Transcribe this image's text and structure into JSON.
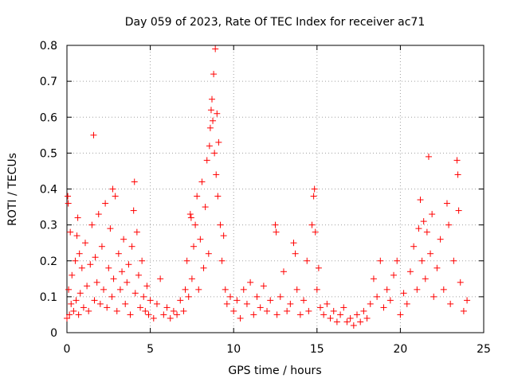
{
  "chart_data": {
    "type": "scatter",
    "title": "Day 059 of 2023, Rate Of TEC Index for receiver ac71",
    "xlabel": "GPS time / hours",
    "ylabel": "ROTI / TECUs",
    "xlim": [
      0,
      25
    ],
    "ylim": [
      0,
      0.8
    ],
    "xticks": [
      0,
      5,
      10,
      15,
      20,
      25
    ],
    "yticks": [
      0,
      0.1,
      0.2,
      0.3,
      0.4,
      0.5,
      0.6,
      0.7,
      0.8
    ],
    "xtick_labels": [
      "0",
      "5",
      "10",
      "15",
      "20",
      "25"
    ],
    "ytick_labels": [
      "0",
      "0.1",
      "0.2",
      "0.3",
      "0.4",
      "0.5",
      "0.6",
      "0.7",
      "0.8"
    ],
    "grid": true,
    "marker": "plus",
    "color": "#ff0000",
    "series": [
      {
        "points": [
          [
            0.0,
            0.04
          ],
          [
            0.05,
            0.38
          ],
          [
            0.08,
            0.36
          ],
          [
            0.1,
            0.12
          ],
          [
            0.15,
            0.05
          ],
          [
            0.2,
            0.28
          ],
          [
            0.25,
            0.08
          ],
          [
            0.3,
            0.16
          ],
          [
            0.4,
            0.06
          ],
          [
            0.5,
            0.2
          ],
          [
            0.55,
            0.09
          ],
          [
            0.6,
            0.27
          ],
          [
            0.65,
            0.32
          ],
          [
            0.7,
            0.05
          ],
          [
            0.75,
            0.22
          ],
          [
            0.8,
            0.11
          ],
          [
            0.9,
            0.18
          ],
          [
            1.0,
            0.07
          ],
          [
            1.1,
            0.25
          ],
          [
            1.2,
            0.13
          ],
          [
            1.3,
            0.06
          ],
          [
            1.4,
            0.19
          ],
          [
            1.5,
            0.3
          ],
          [
            1.6,
            0.55
          ],
          [
            1.65,
            0.09
          ],
          [
            1.7,
            0.21
          ],
          [
            1.8,
            0.14
          ],
          [
            1.9,
            0.33
          ],
          [
            2.0,
            0.08
          ],
          [
            2.1,
            0.24
          ],
          [
            2.2,
            0.12
          ],
          [
            2.3,
            0.36
          ],
          [
            2.4,
            0.07
          ],
          [
            2.5,
            0.18
          ],
          [
            2.6,
            0.29
          ],
          [
            2.7,
            0.1
          ],
          [
            2.75,
            0.4
          ],
          [
            2.8,
            0.15
          ],
          [
            2.9,
            0.38
          ],
          [
            3.0,
            0.06
          ],
          [
            3.1,
            0.22
          ],
          [
            3.2,
            0.12
          ],
          [
            3.3,
            0.17
          ],
          [
            3.4,
            0.26
          ],
          [
            3.5,
            0.08
          ],
          [
            3.6,
            0.14
          ],
          [
            3.7,
            0.19
          ],
          [
            3.8,
            0.05
          ],
          [
            3.9,
            0.24
          ],
          [
            4.0,
            0.34
          ],
          [
            4.05,
            0.42
          ],
          [
            4.1,
            0.11
          ],
          [
            4.2,
            0.28
          ],
          [
            4.3,
            0.16
          ],
          [
            4.4,
            0.07
          ],
          [
            4.5,
            0.2
          ],
          [
            4.6,
            0.1
          ],
          [
            4.7,
            0.06
          ],
          [
            4.8,
            0.13
          ],
          [
            4.9,
            0.05
          ],
          [
            5.0,
            0.09
          ],
          [
            5.2,
            0.04
          ],
          [
            5.4,
            0.08
          ],
          [
            5.6,
            0.15
          ],
          [
            5.8,
            0.05
          ],
          [
            6.0,
            0.07
          ],
          [
            6.2,
            0.04
          ],
          [
            6.4,
            0.06
          ],
          [
            6.6,
            0.05
          ],
          [
            6.8,
            0.09
          ],
          [
            7.0,
            0.06
          ],
          [
            7.1,
            0.12
          ],
          [
            7.2,
            0.2
          ],
          [
            7.3,
            0.1
          ],
          [
            7.4,
            0.33
          ],
          [
            7.45,
            0.32
          ],
          [
            7.5,
            0.15
          ],
          [
            7.6,
            0.24
          ],
          [
            7.7,
            0.3
          ],
          [
            7.8,
            0.38
          ],
          [
            7.9,
            0.12
          ],
          [
            8.0,
            0.26
          ],
          [
            8.1,
            0.42
          ],
          [
            8.2,
            0.18
          ],
          [
            8.3,
            0.35
          ],
          [
            8.4,
            0.48
          ],
          [
            8.5,
            0.22
          ],
          [
            8.55,
            0.52
          ],
          [
            8.6,
            0.57
          ],
          [
            8.65,
            0.62
          ],
          [
            8.7,
            0.65
          ],
          [
            8.75,
            0.59
          ],
          [
            8.8,
            0.72
          ],
          [
            8.85,
            0.5
          ],
          [
            8.9,
            0.79
          ],
          [
            8.95,
            0.44
          ],
          [
            9.0,
            0.61
          ],
          [
            9.05,
            0.38
          ],
          [
            9.1,
            0.53
          ],
          [
            9.2,
            0.3
          ],
          [
            9.3,
            0.2
          ],
          [
            9.4,
            0.27
          ],
          [
            9.5,
            0.12
          ],
          [
            9.6,
            0.08
          ],
          [
            9.8,
            0.1
          ],
          [
            10.0,
            0.06
          ],
          [
            10.2,
            0.09
          ],
          [
            10.4,
            0.04
          ],
          [
            10.6,
            0.12
          ],
          [
            10.8,
            0.08
          ],
          [
            11.0,
            0.14
          ],
          [
            11.2,
            0.05
          ],
          [
            11.4,
            0.1
          ],
          [
            11.6,
            0.07
          ],
          [
            11.8,
            0.13
          ],
          [
            12.0,
            0.06
          ],
          [
            12.2,
            0.09
          ],
          [
            12.5,
            0.3
          ],
          [
            12.55,
            0.28
          ],
          [
            12.6,
            0.05
          ],
          [
            12.8,
            0.1
          ],
          [
            13.0,
            0.17
          ],
          [
            13.2,
            0.06
          ],
          [
            13.4,
            0.08
          ],
          [
            13.6,
            0.25
          ],
          [
            13.7,
            0.22
          ],
          [
            13.8,
            0.12
          ],
          [
            14.0,
            0.05
          ],
          [
            14.2,
            0.09
          ],
          [
            14.4,
            0.2
          ],
          [
            14.5,
            0.06
          ],
          [
            14.7,
            0.3
          ],
          [
            14.8,
            0.38
          ],
          [
            14.85,
            0.4
          ],
          [
            14.9,
            0.28
          ],
          [
            15.0,
            0.12
          ],
          [
            15.1,
            0.18
          ],
          [
            15.2,
            0.07
          ],
          [
            15.4,
            0.05
          ],
          [
            15.6,
            0.08
          ],
          [
            15.8,
            0.04
          ],
          [
            16.0,
            0.06
          ],
          [
            16.2,
            0.03
          ],
          [
            16.4,
            0.05
          ],
          [
            16.6,
            0.07
          ],
          [
            16.8,
            0.03
          ],
          [
            17.0,
            0.04
          ],
          [
            17.2,
            0.02
          ],
          [
            17.4,
            0.05
          ],
          [
            17.6,
            0.03
          ],
          [
            17.8,
            0.06
          ],
          [
            18.0,
            0.04
          ],
          [
            18.2,
            0.08
          ],
          [
            18.4,
            0.15
          ],
          [
            18.6,
            0.1
          ],
          [
            18.8,
            0.2
          ],
          [
            19.0,
            0.07
          ],
          [
            19.2,
            0.12
          ],
          [
            19.4,
            0.09
          ],
          [
            19.6,
            0.16
          ],
          [
            19.8,
            0.2
          ],
          [
            20.0,
            0.05
          ],
          [
            20.2,
            0.11
          ],
          [
            20.4,
            0.08
          ],
          [
            20.6,
            0.17
          ],
          [
            20.8,
            0.24
          ],
          [
            21.0,
            0.12
          ],
          [
            21.1,
            0.29
          ],
          [
            21.2,
            0.37
          ],
          [
            21.3,
            0.2
          ],
          [
            21.4,
            0.31
          ],
          [
            21.5,
            0.15
          ],
          [
            21.6,
            0.28
          ],
          [
            21.7,
            0.49
          ],
          [
            21.8,
            0.22
          ],
          [
            21.9,
            0.33
          ],
          [
            22.0,
            0.1
          ],
          [
            22.2,
            0.18
          ],
          [
            22.4,
            0.26
          ],
          [
            22.6,
            0.12
          ],
          [
            22.8,
            0.36
          ],
          [
            22.9,
            0.3
          ],
          [
            23.0,
            0.08
          ],
          [
            23.2,
            0.2
          ],
          [
            23.4,
            0.48
          ],
          [
            23.45,
            0.44
          ],
          [
            23.5,
            0.34
          ],
          [
            23.6,
            0.14
          ],
          [
            23.8,
            0.06
          ],
          [
            24.0,
            0.09
          ]
        ]
      }
    ]
  }
}
